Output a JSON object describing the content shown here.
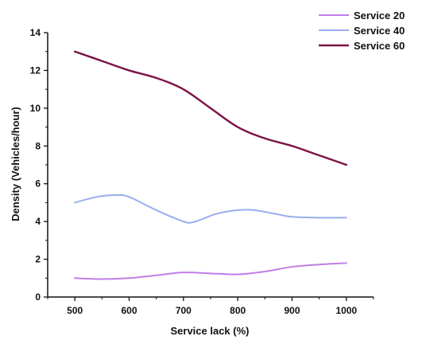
{
  "chart_data": {
    "type": "line",
    "xlabel": "Service lack (%)",
    "ylabel": "Density (Vehicles/hour)",
    "xlim": [
      450,
      1050
    ],
    "ylim": [
      0,
      14
    ],
    "x_ticks": [
      500,
      600,
      700,
      800,
      900,
      1000
    ],
    "y_ticks": [
      0,
      2,
      4,
      6,
      8,
      10,
      12,
      14
    ],
    "x": [
      500,
      600,
      700,
      800,
      900,
      1000
    ],
    "legend_position": "top-right",
    "grid": false,
    "series": [
      {
        "name": "Service 20",
        "color": "#bf7fe6",
        "values": [
          1.0,
          1.0,
          1.3,
          1.2,
          1.6,
          1.8
        ],
        "curve": [
          [
            500,
            1.0
          ],
          [
            550,
            0.95
          ],
          [
            600,
            1.0
          ],
          [
            650,
            1.15
          ],
          [
            700,
            1.3
          ],
          [
            750,
            1.25
          ],
          [
            800,
            1.2
          ],
          [
            850,
            1.35
          ],
          [
            900,
            1.6
          ],
          [
            950,
            1.72
          ],
          [
            1000,
            1.8
          ]
        ]
      },
      {
        "name": "Service 40",
        "color": "#9aaeee",
        "values": [
          5.0,
          5.3,
          4.0,
          4.6,
          4.3,
          4.2
        ],
        "curve": [
          [
            500,
            5.0
          ],
          [
            540,
            5.3
          ],
          [
            575,
            5.4
          ],
          [
            600,
            5.3
          ],
          [
            650,
            4.6
          ],
          [
            700,
            4.0
          ],
          [
            720,
            3.98
          ],
          [
            760,
            4.4
          ],
          [
            800,
            4.6
          ],
          [
            830,
            4.6
          ],
          [
            870,
            4.4
          ],
          [
            900,
            4.25
          ],
          [
            950,
            4.2
          ],
          [
            1000,
            4.2
          ]
        ]
      },
      {
        "name": "Service 60",
        "color": "#7b1346",
        "values": [
          13.0,
          12.0,
          11.0,
          9.0,
          8.0,
          7.0
        ],
        "curve": [
          [
            500,
            13.0
          ],
          [
            550,
            12.5
          ],
          [
            600,
            12.0
          ],
          [
            650,
            11.6
          ],
          [
            700,
            11.0
          ],
          [
            750,
            10.0
          ],
          [
            800,
            9.0
          ],
          [
            850,
            8.4
          ],
          [
            900,
            8.0
          ],
          [
            950,
            7.5
          ],
          [
            1000,
            7.0
          ]
        ]
      }
    ]
  }
}
